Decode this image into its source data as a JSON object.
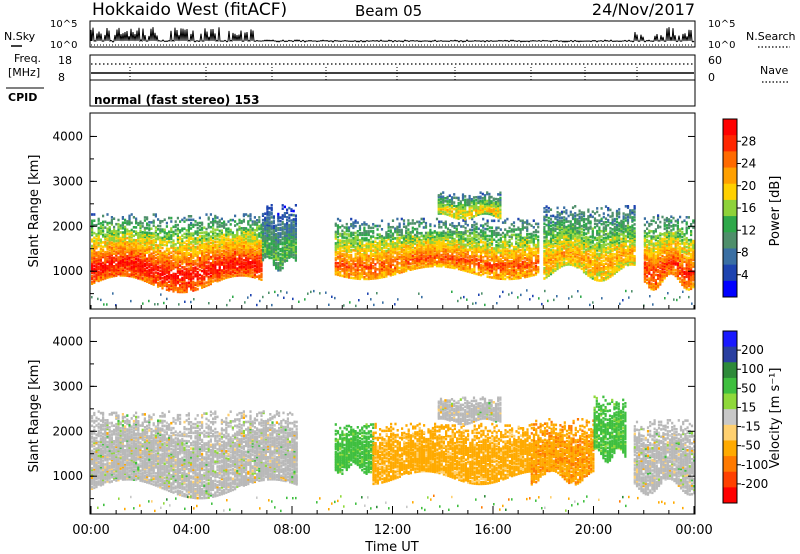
{
  "header": {
    "station": "Hokkaido West (fitACF)",
    "beam": "Beam 05",
    "date": "24/Nov/2017"
  },
  "noise_panel": {
    "left_label": "N.Sky",
    "right_label": "N.Search",
    "ticks": [
      "10^5",
      "10^0"
    ]
  },
  "freq_panel": {
    "left_label_1": "Freq.",
    "left_label_2": "[MHz]",
    "right_label": "Nave",
    "left_ticks": [
      "18",
      "8"
    ],
    "right_ticks": [
      "60",
      "0"
    ]
  },
  "cpid": {
    "label": "CPID",
    "mode": "normal (fast stereo) 153"
  },
  "colors": {
    "power_scale": [
      "#0000ff",
      "#1e44b0",
      "#3a6fa3",
      "#4f8f6b",
      "#2ea84a",
      "#8ed23a",
      "#ffd000",
      "#ffa000",
      "#ff6a00",
      "#ff2600",
      "#ff0000"
    ],
    "velocity_scale": [
      "#ff0000",
      "#ff4000",
      "#ff7a00",
      "#ffaa00",
      "#ffd070",
      "#c8c8c8",
      "#8fd83a",
      "#3fbf3f",
      "#2e8a3a",
      "#2a3fa0",
      "#1a1aff"
    ],
    "ground_scatter": "#b9b9b9"
  },
  "chart_data": [
    {
      "type": "heatmap",
      "panel": "power",
      "ylabel": "Slant Range [km]",
      "xlim": [
        0,
        24
      ],
      "ylim": [
        180,
        4500
      ],
      "yticks": [
        "1000",
        "2000",
        "3000",
        "4000"
      ],
      "colorbar": {
        "label": "Power [dB]",
        "range": [
          0,
          32
        ],
        "ticks": [
          "28",
          "24",
          "20",
          "16",
          "12",
          "8",
          "4"
        ]
      },
      "echo_regions": [
        {
          "t_start": 0.0,
          "t_end": 6.8,
          "range_low_km": 750,
          "range_high_km": 2300,
          "peak_dB": 30
        },
        {
          "t_start": 6.8,
          "t_end": 8.2,
          "range_low_km": 1200,
          "range_high_km": 2500,
          "peak_dB": 14
        },
        {
          "t_start": 9.7,
          "t_end": 17.8,
          "range_low_km": 1000,
          "range_high_km": 2200,
          "peak_dB": 26
        },
        {
          "t_start": 13.8,
          "t_end": 16.3,
          "range_low_km": 2250,
          "range_high_km": 2800,
          "peak_dB": 20
        },
        {
          "t_start": 18.0,
          "t_end": 21.6,
          "range_low_km": 1000,
          "range_high_km": 2500,
          "peak_dB": 22
        },
        {
          "t_start": 22.0,
          "t_end": 24.0,
          "range_low_km": 800,
          "range_high_km": 2300,
          "peak_dB": 28
        }
      ]
    },
    {
      "type": "heatmap",
      "panel": "velocity",
      "ylabel": "Slant Range [km]",
      "xlabel": "Time UT",
      "xlim": [
        0,
        24
      ],
      "ylim": [
        180,
        4500
      ],
      "yticks": [
        "1000",
        "2000",
        "3000",
        "4000"
      ],
      "xticks": [
        "00:00",
        "04:00",
        "08:00",
        "12:00",
        "16:00",
        "20:00",
        "00:00"
      ],
      "colorbar": {
        "label": "Velocity [m s⁻¹]",
        "ticks": [
          "200",
          "100",
          "50",
          "15",
          "-15",
          "-50",
          "-100",
          "-200"
        ]
      },
      "echo_regions": [
        {
          "t_start": 0.0,
          "t_end": 8.2,
          "range_low_km": 750,
          "range_high_km": 2500,
          "velocity_ms": 0
        },
        {
          "t_start": 9.7,
          "t_end": 11.2,
          "range_low_km": 1200,
          "range_high_km": 2200,
          "velocity_ms": 30
        },
        {
          "t_start": 11.2,
          "t_end": 17.5,
          "range_low_km": 1000,
          "range_high_km": 2200,
          "velocity_ms": -30
        },
        {
          "t_start": 13.8,
          "t_end": 16.3,
          "range_low_km": 2250,
          "range_high_km": 2800,
          "velocity_ms": 0
        },
        {
          "t_start": 17.5,
          "t_end": 20.0,
          "range_low_km": 1000,
          "range_high_km": 2300,
          "velocity_ms": -40
        },
        {
          "t_start": 20.0,
          "t_end": 21.3,
          "range_low_km": 1500,
          "range_high_km": 2800,
          "velocity_ms": 30
        },
        {
          "t_start": 21.6,
          "t_end": 24.0,
          "range_low_km": 800,
          "range_high_km": 2300,
          "velocity_ms": 0
        }
      ]
    }
  ]
}
